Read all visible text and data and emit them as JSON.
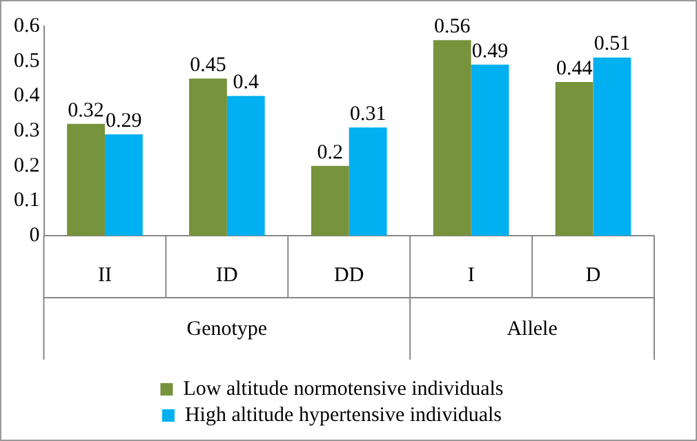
{
  "chart_data": {
    "type": "bar",
    "categories": [
      "II",
      "ID",
      "DD",
      "I",
      "D"
    ],
    "series": [
      {
        "name": "Low altitude normotensive individuals",
        "color": "#77933c",
        "values": [
          0.32,
          0.45,
          0.2,
          0.56,
          0.44
        ]
      },
      {
        "name": "High altitude hypertensive individuals",
        "color": "#00b0f0",
        "values": [
          0.29,
          0.4,
          0.31,
          0.49,
          0.51
        ]
      }
    ],
    "ylim": [
      0,
      0.6
    ],
    "yticks": [
      0,
      0.1,
      0.2,
      0.3,
      0.4,
      0.5,
      0.6
    ],
    "grid": false,
    "legend": "bottom",
    "data_labels": true,
    "annotations": [
      "Genotype",
      "Allele"
    ]
  }
}
